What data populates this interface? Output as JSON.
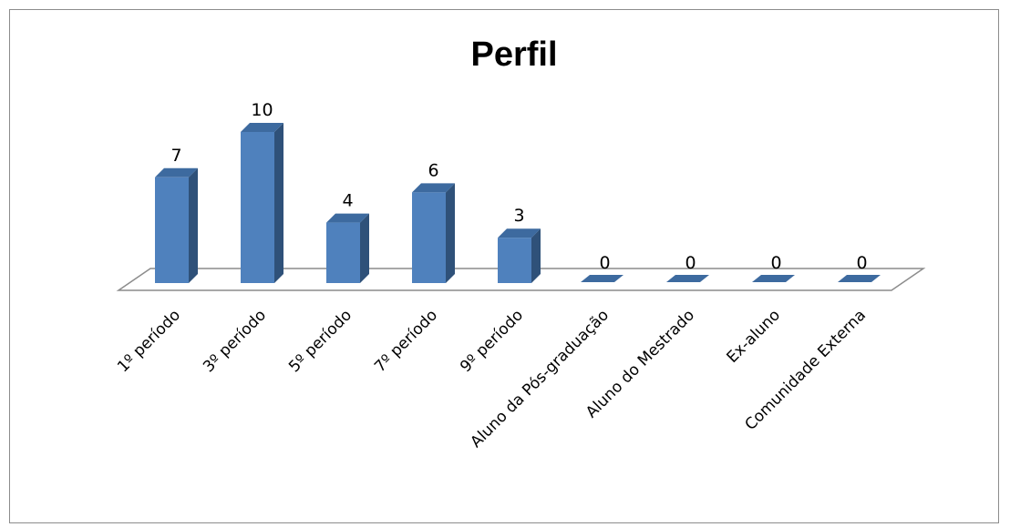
{
  "chart_data": {
    "type": "bar",
    "title": "Perfil",
    "categories": [
      "1º período",
      "3º período",
      "5º período",
      "7º período",
      "9º período",
      "Aluno da Pós-graduação",
      "Aluno do Mestrado",
      "Ex-aluno",
      "Comunidade Externa"
    ],
    "values": [
      7,
      10,
      4,
      6,
      3,
      0,
      0,
      0,
      0
    ],
    "ylim": [
      0,
      10
    ],
    "grid": false,
    "legend": "none",
    "three_d": true,
    "colors": {
      "front": "#4F81BD",
      "side": "#2F5179",
      "top": "#3D6A9F",
      "floor": "#ffffff",
      "floor_edge": "#8c8c8c"
    }
  }
}
